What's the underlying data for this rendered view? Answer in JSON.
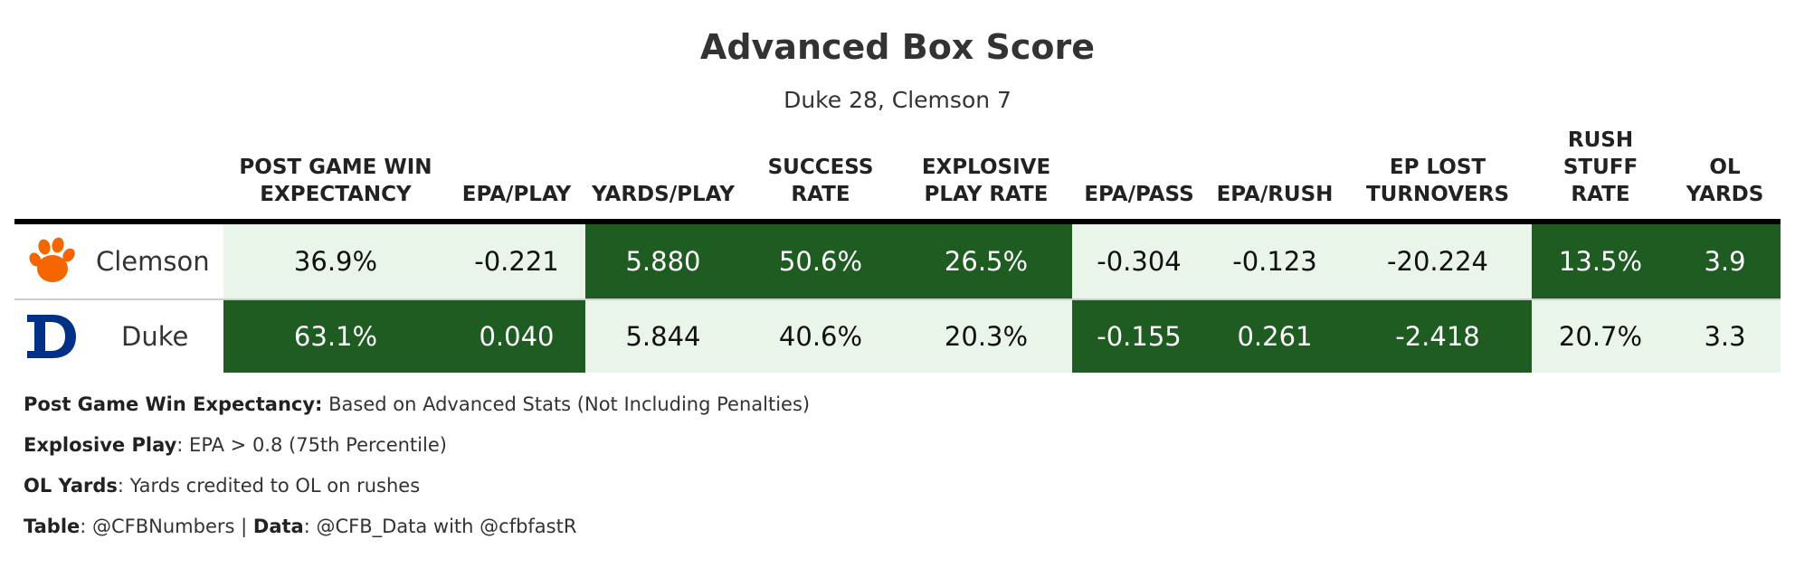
{
  "chart_data": {
    "type": "table",
    "title": "Advanced Box Score",
    "subtitle": "Duke 28, Clemson 7",
    "columns": [
      {
        "key": "wp",
        "label_lines": [
          "POST GAME WIN",
          "EXPECTANCY"
        ]
      },
      {
        "key": "epa_play",
        "label_lines": [
          "EPA/PLAY"
        ]
      },
      {
        "key": "ypp",
        "label_lines": [
          "YARDS/PLAY"
        ]
      },
      {
        "key": "success",
        "label_lines": [
          "SUCCESS",
          "RATE"
        ]
      },
      {
        "key": "explosive",
        "label_lines": [
          "EXPLOSIVE",
          "PLAY RATE"
        ]
      },
      {
        "key": "epa_pass",
        "label_lines": [
          "EPA/PASS"
        ]
      },
      {
        "key": "epa_rush",
        "label_lines": [
          "EPA/RUSH"
        ]
      },
      {
        "key": "ep_lost",
        "label_lines": [
          "EP LOST",
          "TURNOVERS"
        ]
      },
      {
        "key": "stuff",
        "label_lines": [
          "RUSH",
          "STUFF",
          "RATE"
        ]
      },
      {
        "key": "ol",
        "label_lines": [
          "OL",
          "YARDS"
        ]
      }
    ],
    "rows": [
      {
        "team": "Clemson",
        "logo": "clemson-paw-logo",
        "values": [
          "36.9%",
          "-0.221",
          "5.880",
          "50.6%",
          "26.5%",
          "-0.304",
          "-0.123",
          "-20.224",
          "13.5%",
          "3.9"
        ],
        "cell_shade": [
          "light",
          "light",
          "dark",
          "dark",
          "dark",
          "light",
          "light",
          "light",
          "dark",
          "dark"
        ]
      },
      {
        "team": "Duke",
        "logo": "duke-d-logo",
        "values": [
          "63.1%",
          "0.040",
          "5.844",
          "40.6%",
          "20.3%",
          "-0.155",
          "0.261",
          "-2.418",
          "20.7%",
          "3.3"
        ],
        "cell_shade": [
          "dark",
          "dark",
          "light",
          "light",
          "light",
          "dark",
          "dark",
          "dark",
          "light",
          "light"
        ]
      }
    ]
  },
  "colors": {
    "dark_cell": "#1e5c22",
    "light_cell": "#e8f5e8",
    "dark_text": "#ffffff",
    "light_text": "#111111",
    "clemson": "#f56600",
    "duke": "#003087"
  },
  "notes": [
    {
      "parts": [
        {
          "text": "Post Game Win Expectancy:",
          "bold": true
        },
        {
          "text": " Based on Advanced Stats (Not Including Penalties)",
          "bold": false
        }
      ]
    },
    {
      "parts": [
        {
          "text": "Explosive Play",
          "bold": true
        },
        {
          "text": ": EPA > 0.8 (75th Percentile)",
          "bold": false
        }
      ]
    },
    {
      "parts": [
        {
          "text": "OL Yards",
          "bold": true
        },
        {
          "text": ": Yards credited to OL on rushes",
          "bold": false
        }
      ]
    },
    {
      "parts": [
        {
          "text": "Table",
          "bold": true
        },
        {
          "text": ": @CFBNumbers | ",
          "bold": false
        },
        {
          "text": "Data",
          "bold": true
        },
        {
          "text": ": @CFB_Data with @cfbfastR",
          "bold": false
        }
      ]
    }
  ]
}
